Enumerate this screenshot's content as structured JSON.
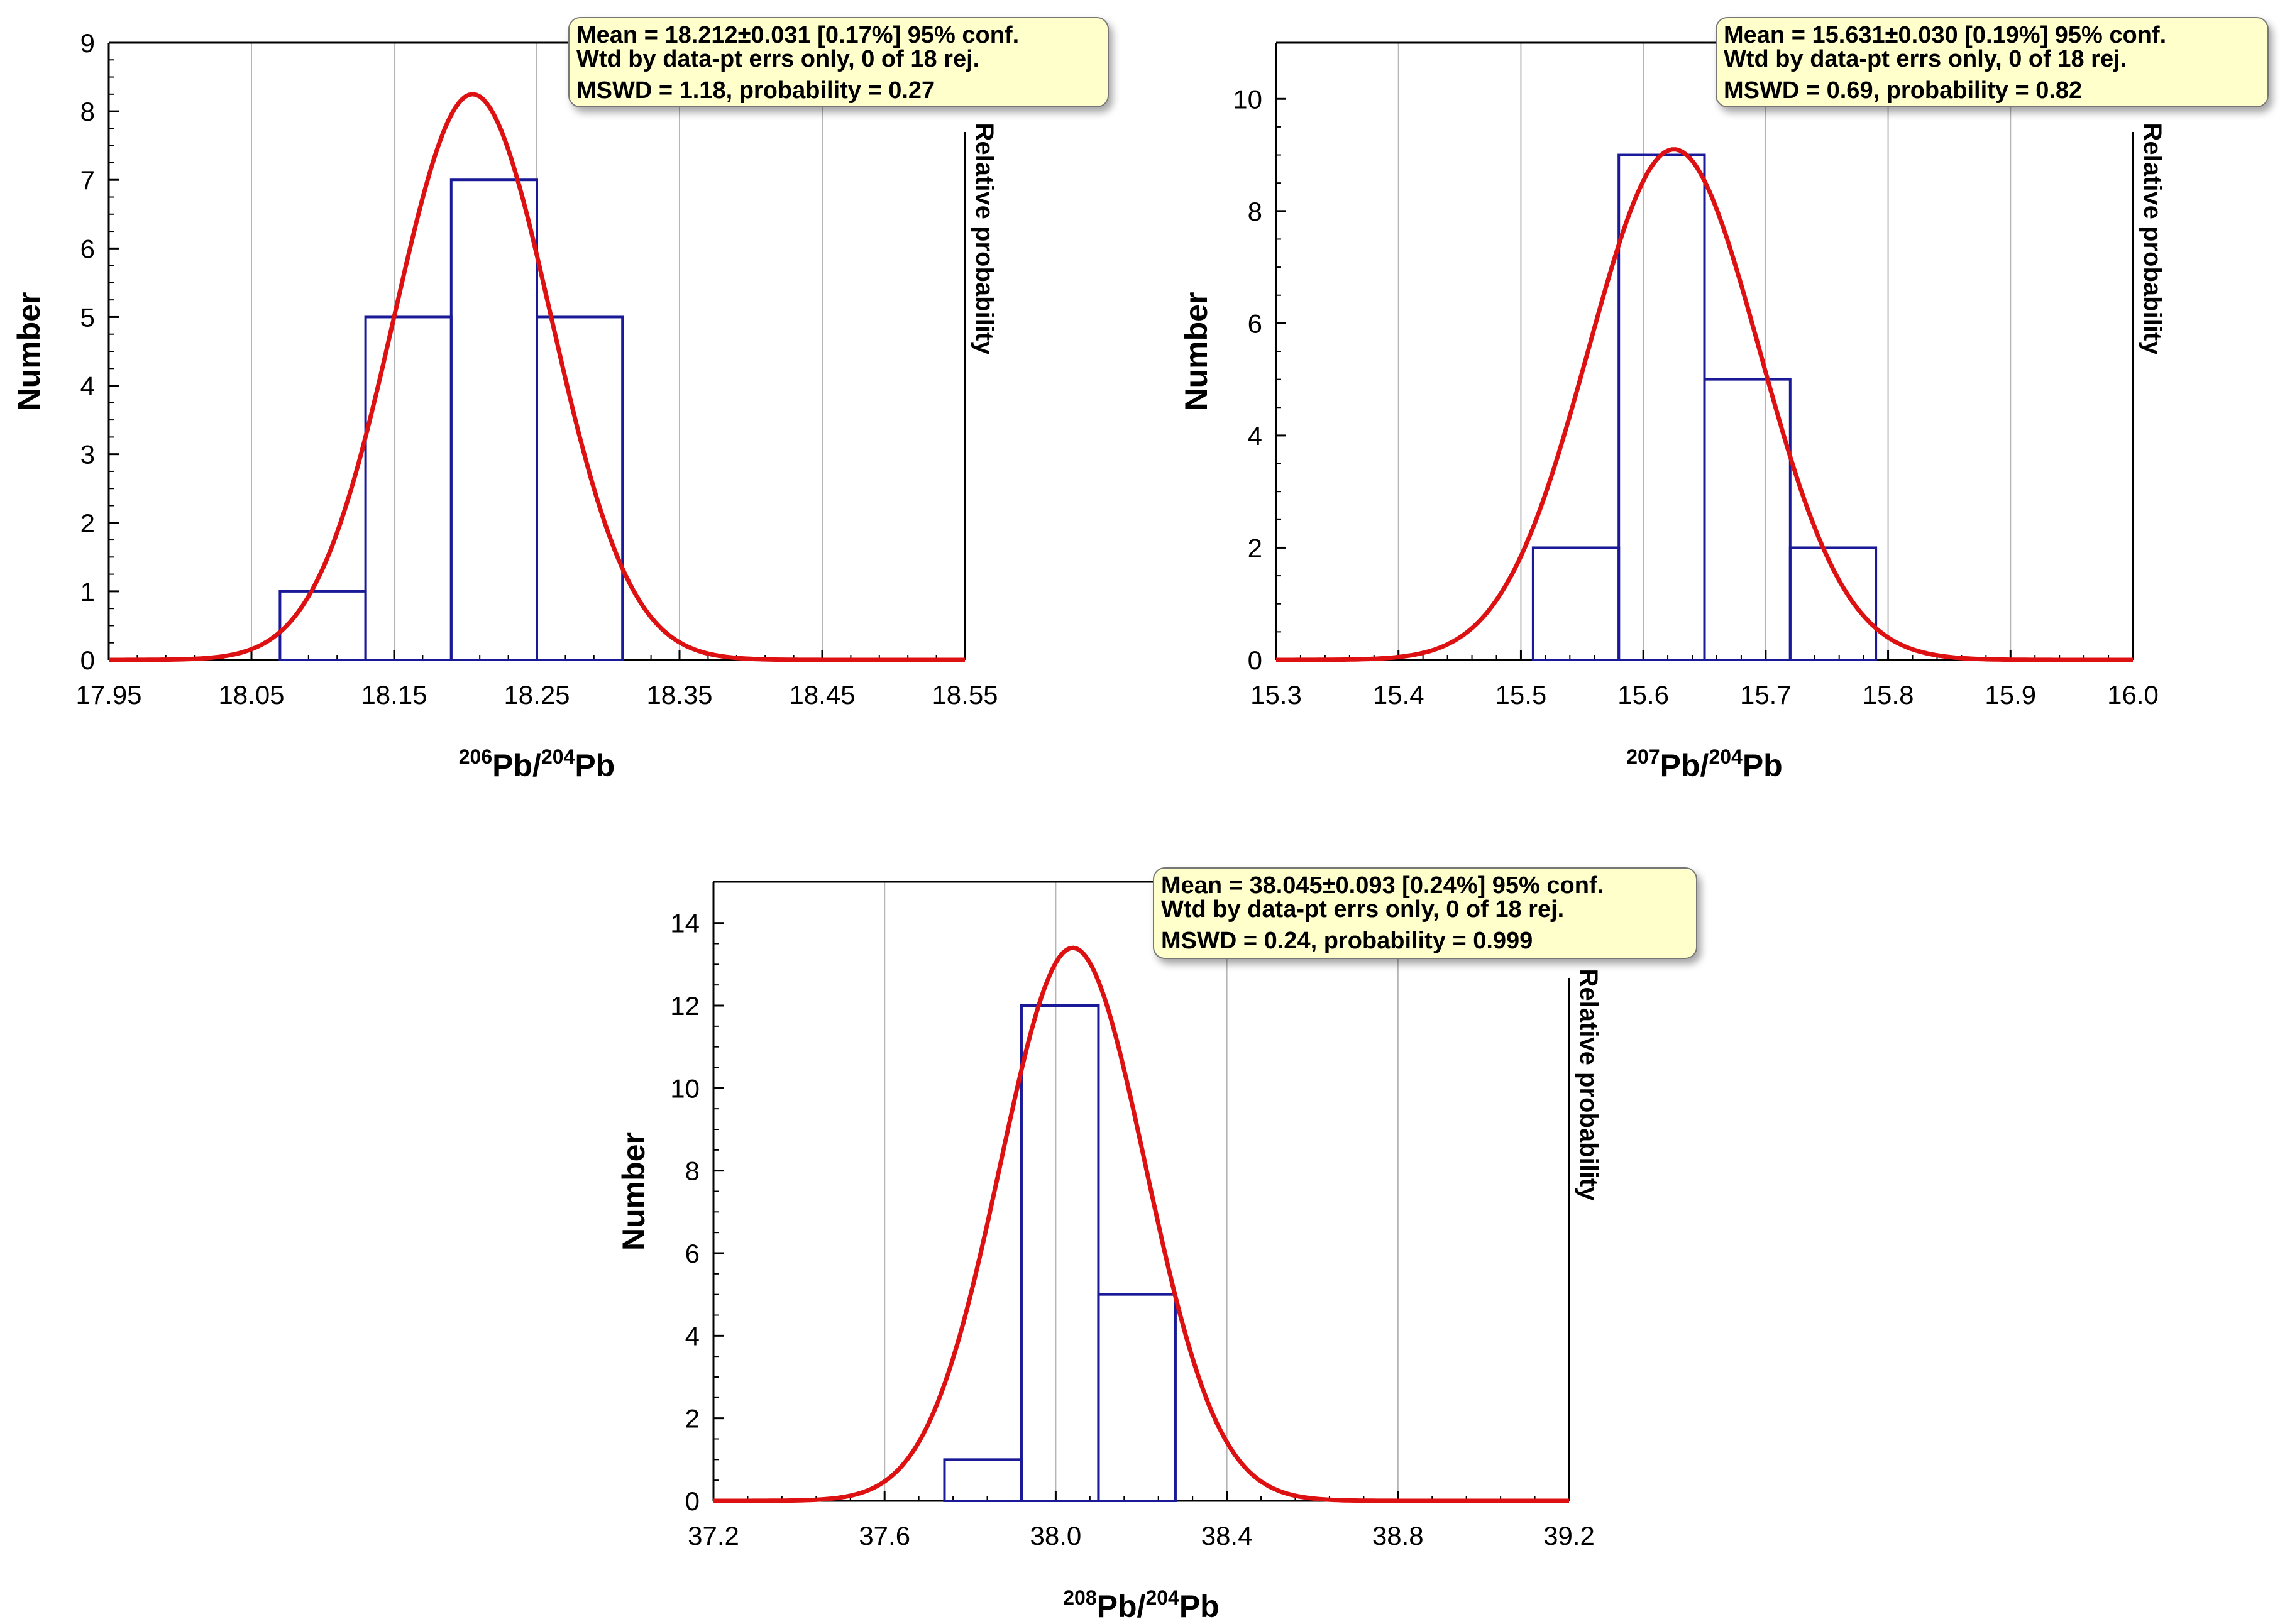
{
  "chart_data": [
    {
      "type": "bar",
      "title": "",
      "ylabel": "Number",
      "ylabel_right": "Relative probability",
      "xlabel": {
        "sup1": "206",
        "base1": "Pb/",
        "sup2": "204",
        "base2": "Pb"
      },
      "xlim": [
        17.95,
        18.55
      ],
      "ylim": [
        0,
        9
      ],
      "xticks": [
        17.95,
        18.05,
        18.15,
        18.25,
        18.35,
        18.45,
        18.55
      ],
      "xtick_labels": [
        "17.95",
        "18.05",
        "18.15",
        "18.25",
        "18.35",
        "18.45",
        "18.55"
      ],
      "yticks": [
        0,
        1,
        2,
        3,
        4,
        5,
        6,
        7,
        8,
        9
      ],
      "ytick_labels": [
        "0",
        "1",
        "2",
        "3",
        "4",
        "5",
        "6",
        "7",
        "8",
        "9"
      ],
      "grid": "vertical",
      "bins": [
        {
          "x0": 18.07,
          "x1": 18.13,
          "count": 1
        },
        {
          "x0": 18.13,
          "x1": 18.19,
          "count": 5
        },
        {
          "x0": 18.19,
          "x1": 18.25,
          "count": 7
        },
        {
          "x0": 18.25,
          "x1": 18.31,
          "count": 5
        }
      ],
      "curve": {
        "mean": 18.205,
        "sd": 0.055,
        "peak": 8.25
      },
      "bar_color": "#1a1a99",
      "curve_color": "#dd1111",
      "stats_box": {
        "line1": "Mean = 18.212±0.031  [0.17%]  95% conf.",
        "line2": "Wtd by data-pt errs only, 0 of 18 rej.",
        "line3": "MSWD = 1.18, probability = 0.27"
      }
    },
    {
      "type": "bar",
      "title": "",
      "ylabel": "Number",
      "ylabel_right": "Relative probability",
      "xlabel": {
        "sup1": "207",
        "base1": "Pb/",
        "sup2": "204",
        "base2": "Pb"
      },
      "xlim": [
        15.3,
        16.0
      ],
      "ylim": [
        0,
        11
      ],
      "xticks": [
        15.3,
        15.4,
        15.5,
        15.6,
        15.7,
        15.8,
        15.9,
        16.0
      ],
      "xtick_labels": [
        "15.3",
        "15.4",
        "15.5",
        "15.6",
        "15.7",
        "15.8",
        "15.9",
        "16.0"
      ],
      "yticks": [
        0,
        2,
        4,
        6,
        8,
        10
      ],
      "ytick_labels": [
        "0",
        "2",
        "4",
        "6",
        "8",
        "10"
      ],
      "grid": "vertical",
      "bins": [
        {
          "x0": 15.51,
          "x1": 15.58,
          "count": 2
        },
        {
          "x0": 15.58,
          "x1": 15.65,
          "count": 9
        },
        {
          "x0": 15.65,
          "x1": 15.72,
          "count": 5
        },
        {
          "x0": 15.72,
          "x1": 15.79,
          "count": 2
        }
      ],
      "curve": {
        "mean": 15.625,
        "sd": 0.07,
        "peak": 9.1
      },
      "bar_color": "#1a1a99",
      "curve_color": "#dd1111",
      "stats_box": {
        "line1": "Mean = 15.631±0.030  [0.19%]  95% conf.",
        "line2": "Wtd by data-pt errs only, 0 of 18 rej.",
        "line3": "MSWD = 0.69, probability = 0.82"
      }
    },
    {
      "type": "bar",
      "title": "",
      "ylabel": "Number",
      "ylabel_right": "Relative probability",
      "xlabel": {
        "sup1": "208",
        "base1": "Pb/",
        "sup2": "204",
        "base2": "Pb"
      },
      "xlim": [
        37.2,
        39.2
      ],
      "ylim": [
        0,
        15
      ],
      "xticks": [
        37.2,
        37.6,
        38.0,
        38.4,
        38.8,
        39.2
      ],
      "xtick_labels": [
        "37.2",
        "37.6",
        "38.0",
        "38.4",
        "38.8",
        "39.2"
      ],
      "yticks": [
        0,
        2,
        4,
        6,
        8,
        10,
        12,
        14
      ],
      "ytick_labels": [
        "0",
        "2",
        "4",
        "6",
        "8",
        "10",
        "12",
        "14"
      ],
      "grid": "vertical",
      "bins": [
        {
          "x0": 37.74,
          "x1": 37.92,
          "count": 1
        },
        {
          "x0": 37.92,
          "x1": 38.1,
          "count": 12
        },
        {
          "x0": 38.1,
          "x1": 38.28,
          "count": 5
        }
      ],
      "curve": {
        "mean": 38.04,
        "sd": 0.17,
        "peak": 13.4
      },
      "bar_color": "#1a1a99",
      "curve_color": "#dd1111",
      "stats_box": {
        "line1": "Mean = 38.045±0.093  [0.24%]  95% conf.",
        "line2": "Wtd by data-pt errs only, 0 of 18 rej.",
        "line3": "MSWD = 0.24, probability = 0.999"
      }
    }
  ]
}
